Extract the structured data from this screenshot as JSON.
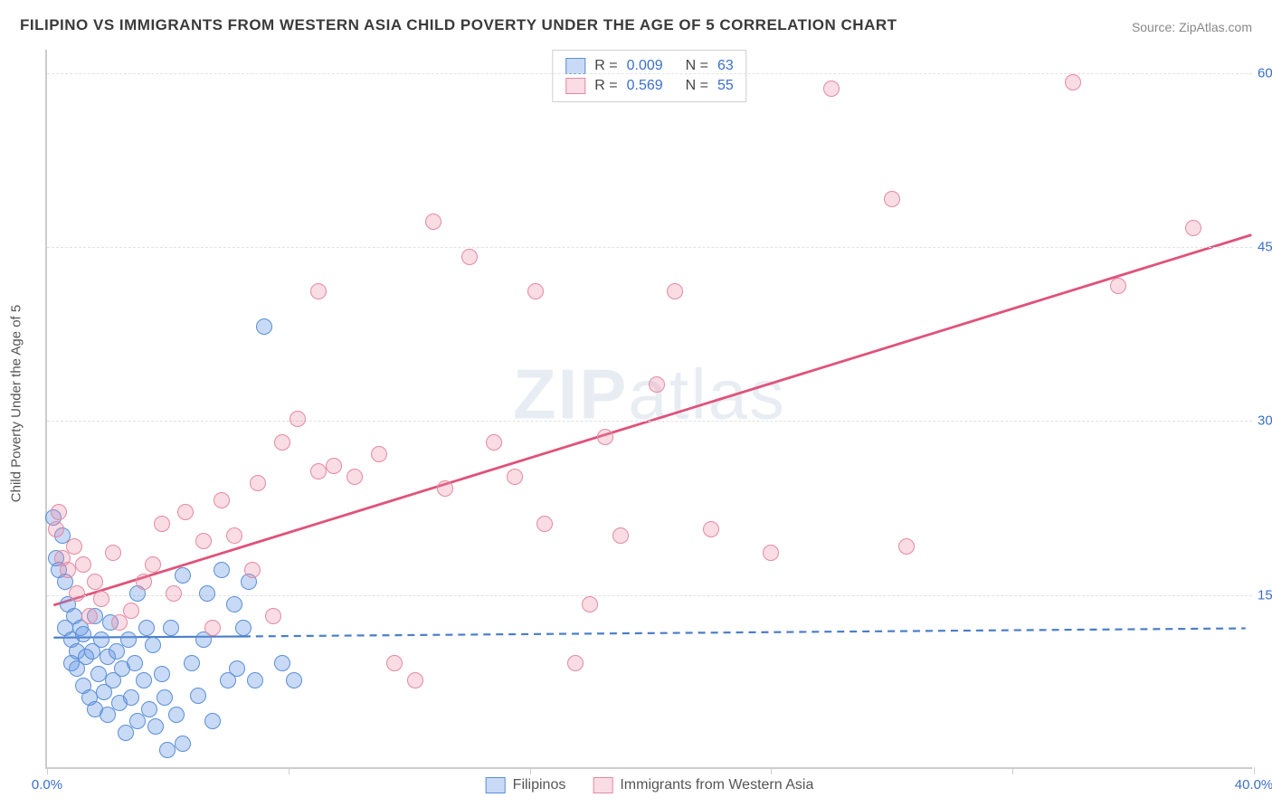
{
  "title": "FILIPINO VS IMMIGRANTS FROM WESTERN ASIA CHILD POVERTY UNDER THE AGE OF 5 CORRELATION CHART",
  "source_label": "Source: ZipAtlas.com",
  "y_axis_label": "Child Poverty Under the Age of 5",
  "watermark": {
    "bold": "ZIP",
    "light": "atlas"
  },
  "chart": {
    "type": "scatter",
    "background_color": "#ffffff",
    "grid_color": "#e2e2e2",
    "axis_color": "#cccccc",
    "xlim": [
      0,
      40
    ],
    "ylim": [
      0,
      62
    ],
    "xticks": [
      0,
      8,
      16,
      24,
      32,
      40
    ],
    "xtick_labels": [
      "0.0%",
      "",
      "",
      "",
      "",
      "40.0%"
    ],
    "xtick_label_color": "#3b6fc9",
    "yticks": [
      15,
      30,
      45,
      60
    ],
    "ytick_labels": [
      "15.0%",
      "30.0%",
      "45.0%",
      "60.0%"
    ],
    "ytick_label_color": "#3b6fc9",
    "marker_radius": 9,
    "marker_stroke_width": 1.5,
    "series": [
      {
        "id": "filipinos",
        "label": "Filipinos",
        "fill_color": "rgba(100,150,230,0.35)",
        "stroke_color": "#5a8fd6",
        "R": "0.009",
        "N": "63",
        "trend": {
          "solid": {
            "x1": 0.2,
            "y1": 11.2,
            "x2": 6.5,
            "y2": 11.3
          },
          "dash": {
            "x1": 6.5,
            "y1": 11.3,
            "x2": 39.8,
            "y2": 12.0
          },
          "color": "#4a7ec9",
          "width": 2.2
        },
        "points": [
          [
            0.2,
            21.5
          ],
          [
            0.3,
            18
          ],
          [
            0.4,
            17
          ],
          [
            0.5,
            20
          ],
          [
            0.6,
            16
          ],
          [
            0.6,
            12
          ],
          [
            0.7,
            14
          ],
          [
            0.8,
            11
          ],
          [
            0.8,
            9
          ],
          [
            0.9,
            13
          ],
          [
            1.0,
            10
          ],
          [
            1.0,
            8.5
          ],
          [
            1.1,
            12
          ],
          [
            1.2,
            7
          ],
          [
            1.2,
            11.5
          ],
          [
            1.3,
            9.5
          ],
          [
            1.4,
            6
          ],
          [
            1.5,
            10
          ],
          [
            1.6,
            13
          ],
          [
            1.6,
            5
          ],
          [
            1.7,
            8
          ],
          [
            1.8,
            11
          ],
          [
            1.9,
            6.5
          ],
          [
            2.0,
            9.5
          ],
          [
            2.0,
            4.5
          ],
          [
            2.1,
            12.5
          ],
          [
            2.2,
            7.5
          ],
          [
            2.3,
            10
          ],
          [
            2.4,
            5.5
          ],
          [
            2.5,
            8.5
          ],
          [
            2.6,
            3
          ],
          [
            2.7,
            11
          ],
          [
            2.8,
            6
          ],
          [
            2.9,
            9
          ],
          [
            3.0,
            15
          ],
          [
            3.0,
            4
          ],
          [
            3.2,
            7.5
          ],
          [
            3.3,
            12
          ],
          [
            3.4,
            5
          ],
          [
            3.5,
            10.5
          ],
          [
            3.6,
            3.5
          ],
          [
            3.8,
            8
          ],
          [
            3.9,
            6
          ],
          [
            4.0,
            1.5
          ],
          [
            4.1,
            12
          ],
          [
            4.3,
            4.5
          ],
          [
            4.5,
            16.5
          ],
          [
            4.5,
            2
          ],
          [
            4.8,
            9
          ],
          [
            5.0,
            6.2
          ],
          [
            5.2,
            11
          ],
          [
            5.3,
            15
          ],
          [
            5.5,
            4
          ],
          [
            5.8,
            17
          ],
          [
            6.0,
            7.5
          ],
          [
            6.2,
            14
          ],
          [
            6.3,
            8.5
          ],
          [
            6.5,
            12
          ],
          [
            6.7,
            16
          ],
          [
            6.9,
            7.5
          ],
          [
            7.2,
            38
          ],
          [
            7.8,
            9
          ],
          [
            8.2,
            7.5
          ]
        ]
      },
      {
        "id": "western_asia",
        "label": "Immigrants from Western Asia",
        "fill_color": "rgba(240,140,165,0.30)",
        "stroke_color": "#e38aa3",
        "R": "0.569",
        "N": "55",
        "trend": {
          "solid": {
            "x1": 0.2,
            "y1": 14,
            "x2": 40,
            "y2": 46
          },
          "color": "#e0527a",
          "width": 2.8
        },
        "points": [
          [
            0.3,
            20.5
          ],
          [
            0.4,
            22
          ],
          [
            0.5,
            18
          ],
          [
            0.7,
            17
          ],
          [
            0.9,
            19
          ],
          [
            1.0,
            15
          ],
          [
            1.2,
            17.5
          ],
          [
            1.4,
            13
          ],
          [
            1.6,
            16
          ],
          [
            1.8,
            14.5
          ],
          [
            2.2,
            18.5
          ],
          [
            2.4,
            12.5
          ],
          [
            2.8,
            13.5
          ],
          [
            3.2,
            16
          ],
          [
            3.5,
            17.5
          ],
          [
            3.8,
            21
          ],
          [
            4.2,
            15
          ],
          [
            4.6,
            22
          ],
          [
            5.2,
            19.5
          ],
          [
            5.5,
            12
          ],
          [
            5.8,
            23
          ],
          [
            6.2,
            20
          ],
          [
            6.8,
            17
          ],
          [
            7.0,
            24.5
          ],
          [
            7.5,
            13
          ],
          [
            7.8,
            28
          ],
          [
            8.3,
            30
          ],
          [
            9.0,
            25.5
          ],
          [
            9.0,
            41
          ],
          [
            9.5,
            26
          ],
          [
            10.2,
            25
          ],
          [
            11.0,
            27
          ],
          [
            11.5,
            9
          ],
          [
            12.2,
            7.5
          ],
          [
            12.8,
            47
          ],
          [
            13.2,
            24
          ],
          [
            14.0,
            44
          ],
          [
            14.8,
            28
          ],
          [
            15.5,
            25
          ],
          [
            16.2,
            41
          ],
          [
            16.5,
            21
          ],
          [
            17.5,
            9
          ],
          [
            18.0,
            14
          ],
          [
            18.5,
            28.5
          ],
          [
            19.0,
            20
          ],
          [
            20.2,
            33
          ],
          [
            20.8,
            41
          ],
          [
            22.0,
            20.5
          ],
          [
            24.0,
            18.5
          ],
          [
            26.0,
            58.5
          ],
          [
            28.0,
            49
          ],
          [
            28.5,
            19
          ],
          [
            34.0,
            59
          ],
          [
            35.5,
            41.5
          ],
          [
            38.0,
            46.5
          ]
        ]
      }
    ]
  },
  "stats_legend": {
    "value_color": "#3b6fc9",
    "label_color": "#444444",
    "r_label": "R =",
    "n_label": "N ="
  },
  "bottom_legend": {
    "text_color": "#555555"
  }
}
